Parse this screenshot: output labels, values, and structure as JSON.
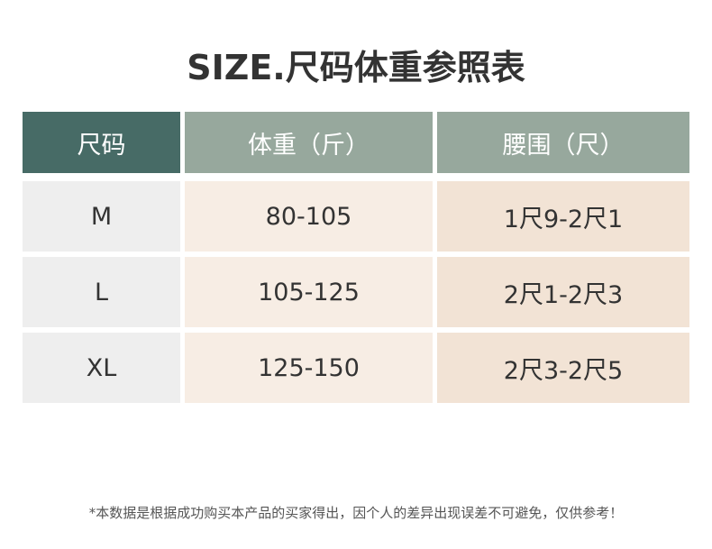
{
  "title": "SIZE.尺码体重参照表",
  "colors": {
    "header_first": "#476b66",
    "header_other": "#97a89d",
    "col_size": "#eeeeee",
    "col_weight": "#f7ede4",
    "col_waist": "#f2e3d5"
  },
  "table": {
    "headers": [
      "尺码",
      "体重（斤）",
      "腰围（尺）"
    ],
    "rows": [
      [
        "M",
        "80-105",
        "1尺9-2尺1"
      ],
      [
        "L",
        "105-125",
        "2尺1-2尺3"
      ],
      [
        "XL",
        "125-150",
        "2尺3-2尺5"
      ]
    ]
  },
  "note": "*本数据是根据成功购买本产品的买家得出，因个人的差异出现误差不可避免，仅供参考！"
}
